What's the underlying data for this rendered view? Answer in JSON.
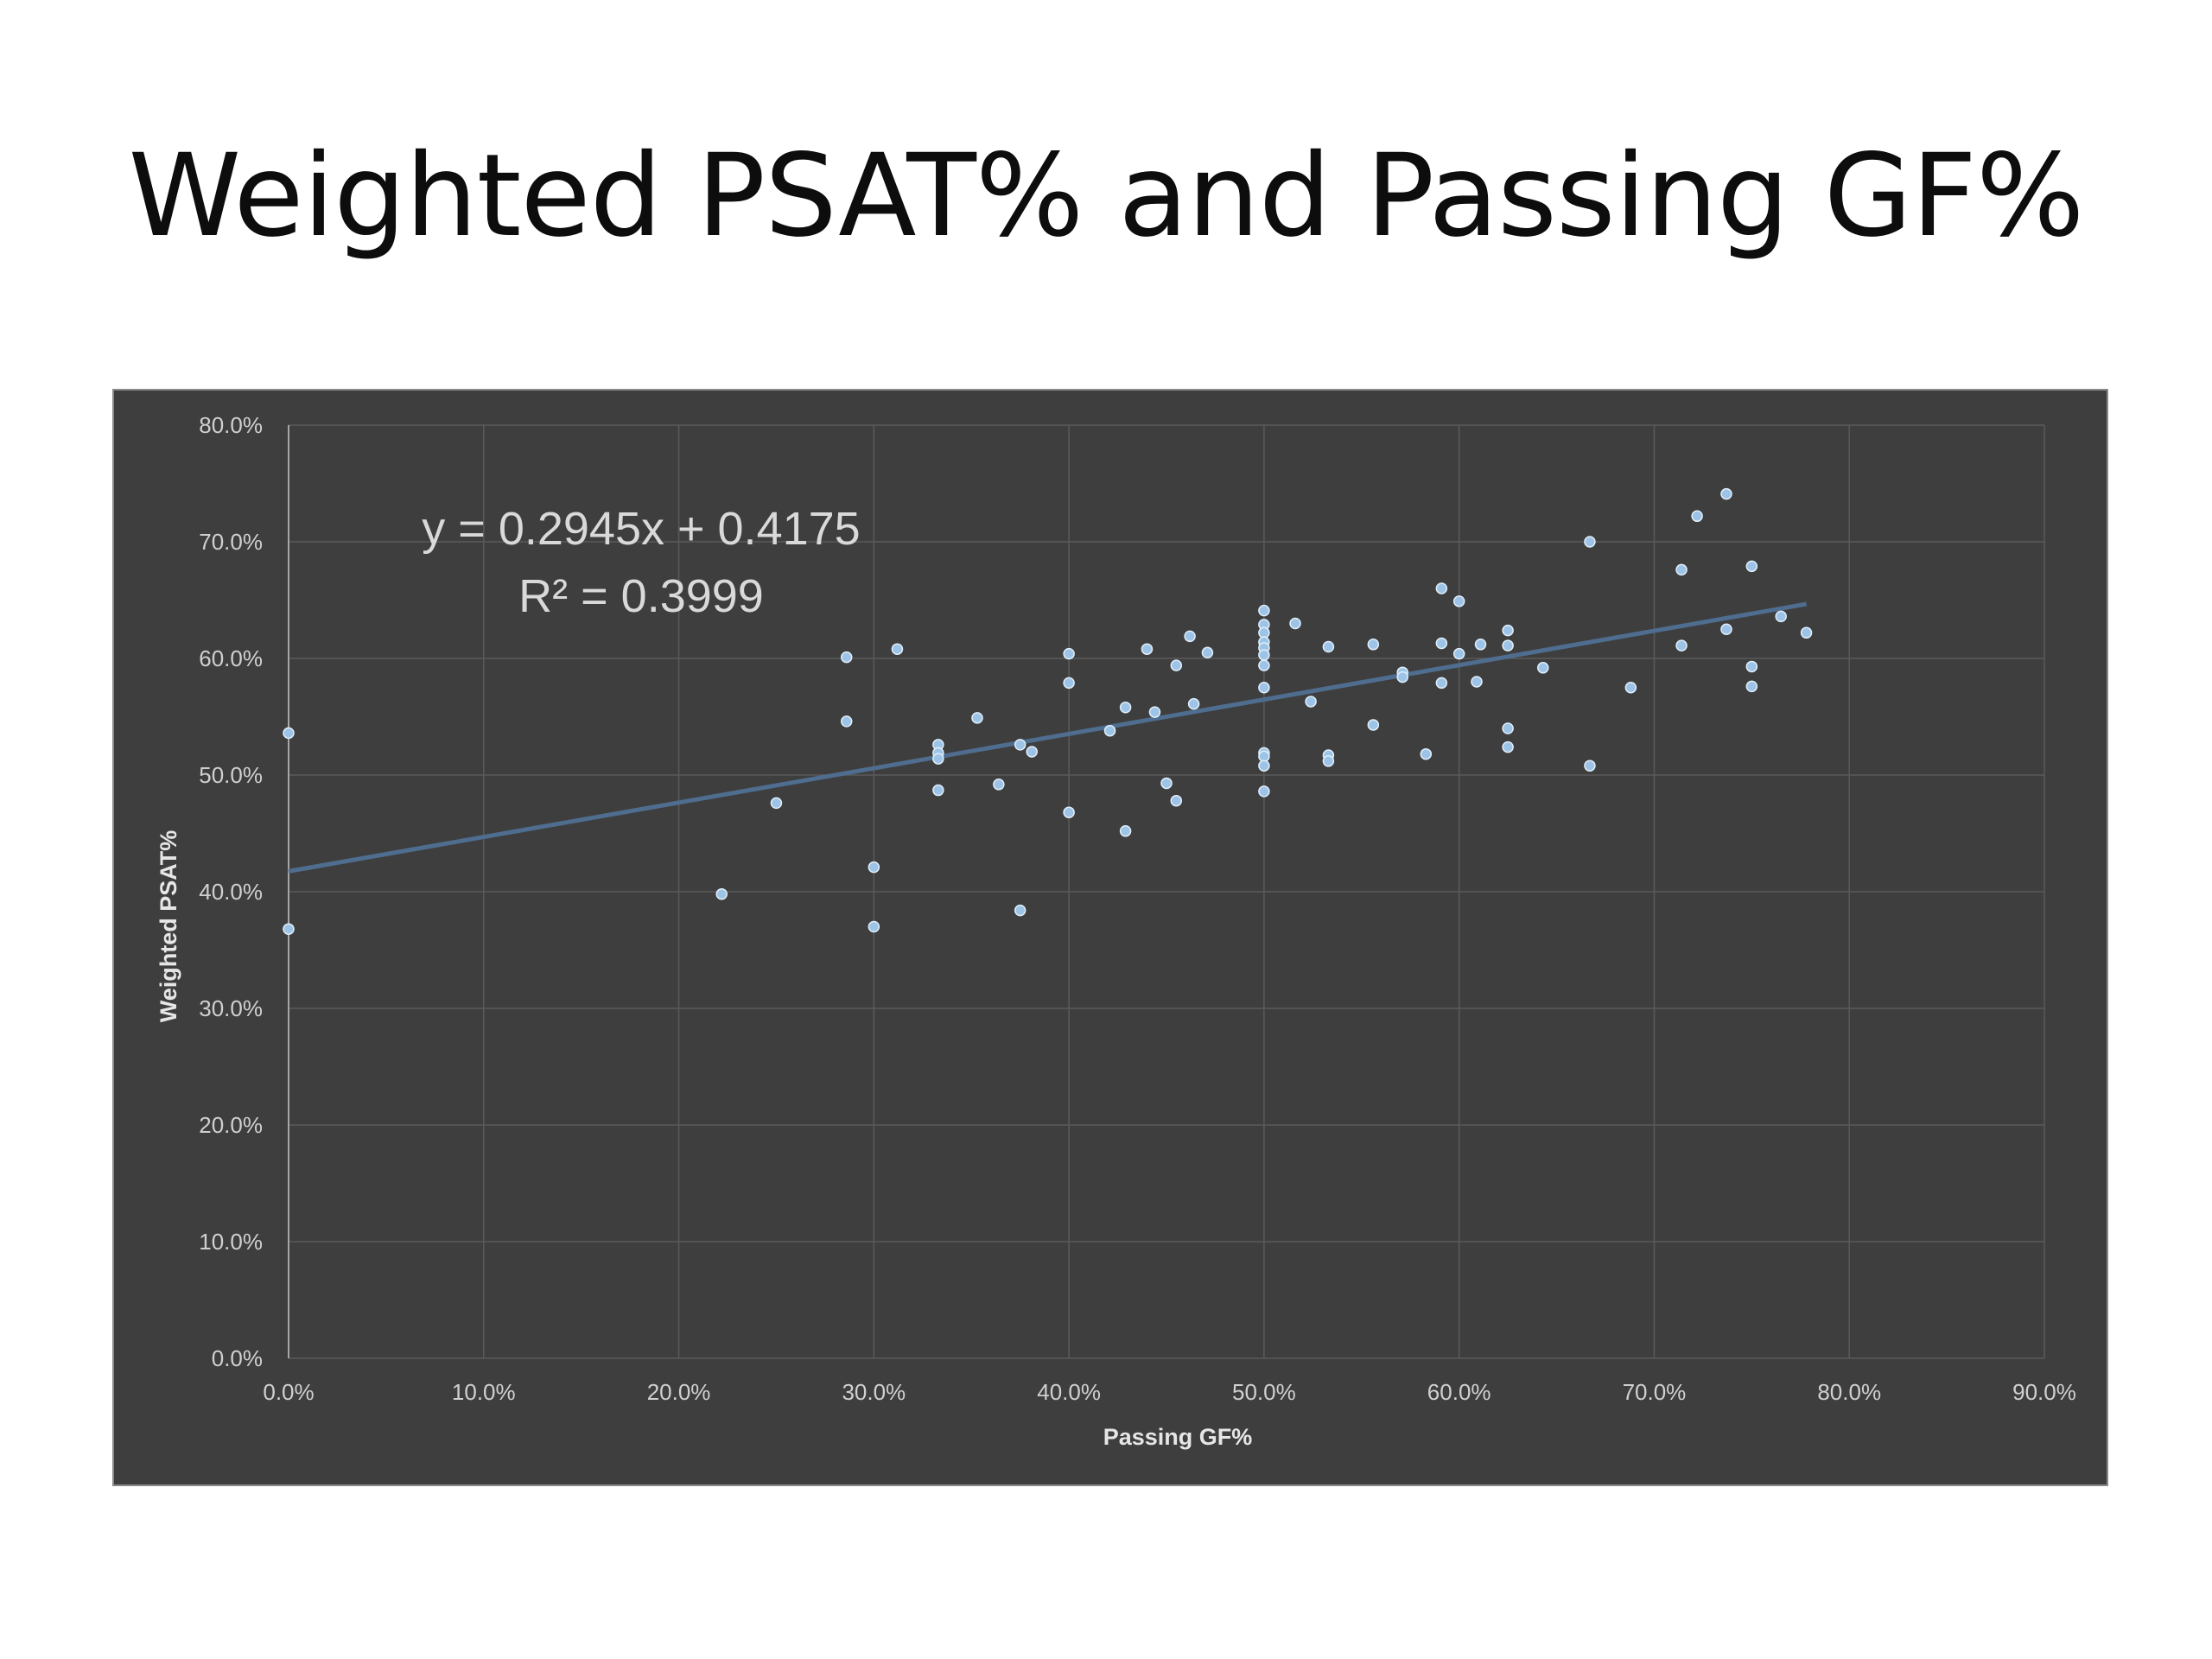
{
  "slide": {
    "title": "Weighted PSAT% and Passing GF%"
  },
  "chart_data": {
    "type": "scatter",
    "title": "",
    "xlabel": "Passing GF%",
    "ylabel": "Weighted PSAT%",
    "xlim": [
      0,
      0.9
    ],
    "ylim": [
      0,
      0.8
    ],
    "x_ticks": [
      "0.0%",
      "10.0%",
      "20.0%",
      "30.0%",
      "40.0%",
      "50.0%",
      "60.0%",
      "70.0%",
      "80.0%",
      "90.0%"
    ],
    "y_ticks": [
      "0.0%",
      "10.0%",
      "20.0%",
      "30.0%",
      "40.0%",
      "50.0%",
      "60.0%",
      "70.0%",
      "80.0%"
    ],
    "grid": true,
    "background_color": "#3e3e3e",
    "marker_color": "#9dc3e6",
    "trendline": {
      "type": "linear",
      "slope": 0.2945,
      "intercept": 0.4175,
      "x_range": [
        0,
        0.778
      ],
      "color": "#4f6d8f",
      "equation": "y = 0.2945x + 0.4175",
      "r_squared": "R² = 0.3999"
    },
    "points": [
      {
        "x": 0.0,
        "y": 0.536
      },
      {
        "x": 0.0,
        "y": 0.368
      },
      {
        "x": 0.222,
        "y": 0.398
      },
      {
        "x": 0.25,
        "y": 0.476
      },
      {
        "x": 0.286,
        "y": 0.601
      },
      {
        "x": 0.286,
        "y": 0.546
      },
      {
        "x": 0.3,
        "y": 0.421
      },
      {
        "x": 0.3,
        "y": 0.37
      },
      {
        "x": 0.312,
        "y": 0.608
      },
      {
        "x": 0.333,
        "y": 0.526
      },
      {
        "x": 0.333,
        "y": 0.519
      },
      {
        "x": 0.333,
        "y": 0.514
      },
      {
        "x": 0.333,
        "y": 0.487
      },
      {
        "x": 0.353,
        "y": 0.549
      },
      {
        "x": 0.364,
        "y": 0.492
      },
      {
        "x": 0.375,
        "y": 0.526
      },
      {
        "x": 0.375,
        "y": 0.384
      },
      {
        "x": 0.381,
        "y": 0.52
      },
      {
        "x": 0.4,
        "y": 0.604
      },
      {
        "x": 0.4,
        "y": 0.579
      },
      {
        "x": 0.4,
        "y": 0.468
      },
      {
        "x": 0.421,
        "y": 0.538
      },
      {
        "x": 0.429,
        "y": 0.558
      },
      {
        "x": 0.429,
        "y": 0.452
      },
      {
        "x": 0.44,
        "y": 0.608
      },
      {
        "x": 0.444,
        "y": 0.554
      },
      {
        "x": 0.45,
        "y": 0.493
      },
      {
        "x": 0.455,
        "y": 0.594
      },
      {
        "x": 0.455,
        "y": 0.478
      },
      {
        "x": 0.462,
        "y": 0.619
      },
      {
        "x": 0.464,
        "y": 0.561
      },
      {
        "x": 0.471,
        "y": 0.605
      },
      {
        "x": 0.5,
        "y": 0.641
      },
      {
        "x": 0.5,
        "y": 0.629
      },
      {
        "x": 0.5,
        "y": 0.622
      },
      {
        "x": 0.5,
        "y": 0.614
      },
      {
        "x": 0.5,
        "y": 0.609
      },
      {
        "x": 0.5,
        "y": 0.603
      },
      {
        "x": 0.5,
        "y": 0.594
      },
      {
        "x": 0.5,
        "y": 0.575
      },
      {
        "x": 0.5,
        "y": 0.519
      },
      {
        "x": 0.5,
        "y": 0.516
      },
      {
        "x": 0.5,
        "y": 0.508
      },
      {
        "x": 0.5,
        "y": 0.486
      },
      {
        "x": 0.516,
        "y": 0.63
      },
      {
        "x": 0.524,
        "y": 0.563
      },
      {
        "x": 0.533,
        "y": 0.61
      },
      {
        "x": 0.533,
        "y": 0.517
      },
      {
        "x": 0.533,
        "y": 0.512
      },
      {
        "x": 0.556,
        "y": 0.612
      },
      {
        "x": 0.556,
        "y": 0.543
      },
      {
        "x": 0.571,
        "y": 0.588
      },
      {
        "x": 0.571,
        "y": 0.584
      },
      {
        "x": 0.583,
        "y": 0.518
      },
      {
        "x": 0.591,
        "y": 0.66
      },
      {
        "x": 0.591,
        "y": 0.613
      },
      {
        "x": 0.591,
        "y": 0.579
      },
      {
        "x": 0.6,
        "y": 0.649
      },
      {
        "x": 0.6,
        "y": 0.604
      },
      {
        "x": 0.609,
        "y": 0.58
      },
      {
        "x": 0.611,
        "y": 0.612
      },
      {
        "x": 0.625,
        "y": 0.624
      },
      {
        "x": 0.625,
        "y": 0.611
      },
      {
        "x": 0.625,
        "y": 0.54
      },
      {
        "x": 0.625,
        "y": 0.524
      },
      {
        "x": 0.643,
        "y": 0.592
      },
      {
        "x": 0.667,
        "y": 0.7
      },
      {
        "x": 0.667,
        "y": 0.508
      },
      {
        "x": 0.688,
        "y": 0.575
      },
      {
        "x": 0.714,
        "y": 0.676
      },
      {
        "x": 0.714,
        "y": 0.611
      },
      {
        "x": 0.722,
        "y": 0.722
      },
      {
        "x": 0.737,
        "y": 0.741
      },
      {
        "x": 0.737,
        "y": 0.625
      },
      {
        "x": 0.75,
        "y": 0.679
      },
      {
        "x": 0.75,
        "y": 0.593
      },
      {
        "x": 0.75,
        "y": 0.576
      },
      {
        "x": 0.765,
        "y": 0.636
      },
      {
        "x": 0.778,
        "y": 0.622
      }
    ]
  }
}
